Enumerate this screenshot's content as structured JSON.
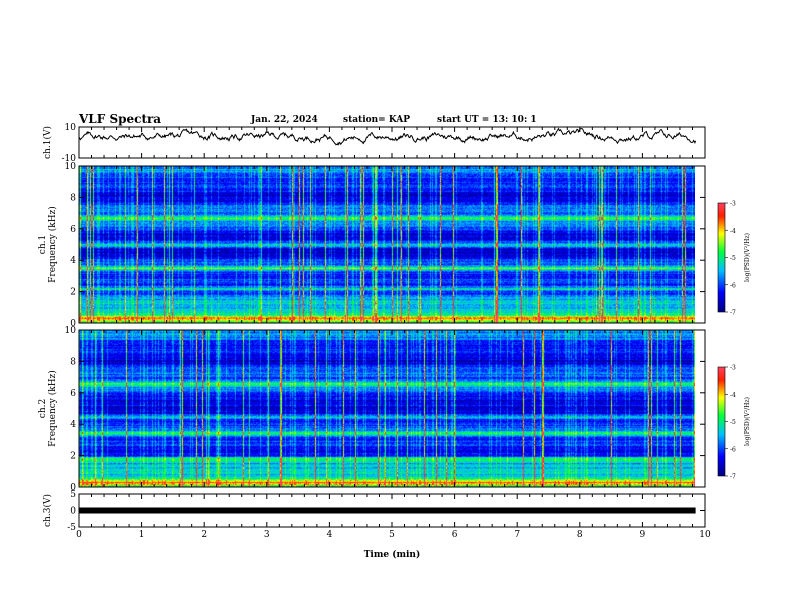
{
  "header": {
    "title": "VLF Spectra",
    "date": "Jan. 22, 2024",
    "station": "station= KAP",
    "start_ut": "start  UT =   13: 10: 1"
  },
  "chart_data": [
    {
      "type": "line",
      "name": "ch1-waveform",
      "ylabel": "ch.1(V)",
      "ylim": [
        -10,
        10
      ],
      "yticks": [
        "10",
        "-10"
      ],
      "x_range_min": [
        0,
        9.85
      ],
      "approx_level": 4,
      "color": "#000000"
    },
    {
      "type": "heatmap",
      "name": "ch1-spectrogram",
      "ylabel_line1": "ch.1",
      "ylabel_line2": "Frequency (kHz)",
      "ylim": [
        0,
        10
      ],
      "yticks": [
        "0",
        "2",
        "4",
        "6",
        "8",
        "10"
      ],
      "x_range_min": [
        0,
        9.85
      ],
      "colorbar": {
        "label": "log(PSD)(V²/Hz)",
        "range": [
          -7,
          -3
        ],
        "ticks": [
          "-3",
          "-4",
          "-5",
          "-6",
          "-7"
        ]
      },
      "bands_khz": [
        0.3,
        2.2,
        3.5,
        5.0,
        6.7
      ]
    },
    {
      "type": "heatmap",
      "name": "ch2-spectrogram",
      "ylabel_line1": "ch.2",
      "ylabel_line2": "Frequency (kHz)",
      "ylim": [
        0,
        10
      ],
      "yticks": [
        "0",
        "2",
        "4",
        "6",
        "8",
        "10"
      ],
      "x_range_min": [
        0,
        9.85
      ],
      "colorbar": {
        "label": "log(PSD)(V²/Hz)",
        "range": [
          -7,
          -3
        ],
        "ticks": [
          "-3",
          "-4",
          "-5",
          "-6",
          "-7"
        ]
      },
      "bands_khz": [
        0.3,
        1.8,
        3.4,
        4.5,
        6.6
      ]
    },
    {
      "type": "line",
      "name": "ch3-signal",
      "ylabel": "ch.3(V)",
      "ylim": [
        -5,
        5
      ],
      "yticks": [
        "5",
        "0",
        "-5"
      ],
      "x_range_min": [
        0,
        9.85
      ],
      "level": 0,
      "color": "#000000"
    }
  ],
  "xaxis": {
    "label": "Time (min)",
    "range": [
      0,
      10
    ],
    "ticks": [
      "0",
      "1",
      "2",
      "3",
      "4",
      "5",
      "6",
      "7",
      "8",
      "9",
      "10"
    ]
  }
}
